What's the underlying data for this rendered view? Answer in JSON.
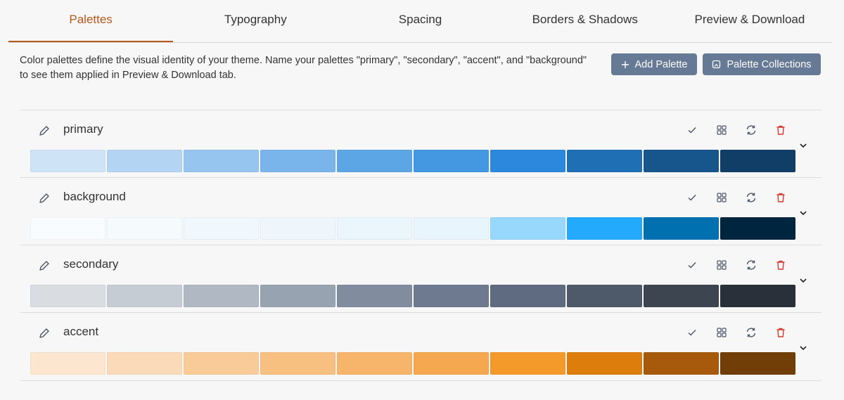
{
  "tabs": [
    {
      "label": "Palettes",
      "active": true
    },
    {
      "label": "Typography",
      "active": false
    },
    {
      "label": "Spacing",
      "active": false
    },
    {
      "label": "Borders & Shadows",
      "active": false
    },
    {
      "label": "Preview & Download",
      "active": false
    }
  ],
  "description": "Color palettes define the visual identity of your theme. Name your palettes \"primary\", \"secondary\", \"accent\", and \"background\" to see them applied in Preview & Download tab.",
  "buttons": {
    "add_palette": "Add Palette",
    "palette_collections": "Palette Collections"
  },
  "colors": {
    "active_tab": "#b5581c",
    "button_bg": "#667995",
    "icon": "#4a5568",
    "delete_icon": "#d63a2f"
  },
  "row_icons": [
    "edit-icon",
    "check-icon",
    "grid-icon",
    "refresh-icon",
    "trash-icon",
    "chevron-down-icon"
  ],
  "palettes": [
    {
      "name": "primary",
      "colors": [
        "#cfe3f7",
        "#b3d5f3",
        "#96c5ef",
        "#79b5ea",
        "#5ca6e6",
        "#4498e2",
        "#2b88dc",
        "#1f6fb5",
        "#17568d",
        "#113e67"
      ]
    },
    {
      "name": "background",
      "colors": [
        "#f9fcfe",
        "#f5fafd",
        "#f1f8fd",
        "#eef6fc",
        "#ebf5fc",
        "#e8f5fd",
        "#99d8fd",
        "#24aafd",
        "#0070b0",
        "#00253f"
      ]
    },
    {
      "name": "secondary",
      "colors": [
        "#d9dde1",
        "#c6ccd3",
        "#b0b8c3",
        "#98a3b1",
        "#818d9e",
        "#6d7a8f",
        "#5e6b80",
        "#4e5969",
        "#3d4551",
        "#2a3039"
      ]
    },
    {
      "name": "accent",
      "colors": [
        "#fde6d0",
        "#fbdab9",
        "#f9cb99",
        "#f8c080",
        "#f6b56a",
        "#f5a84f",
        "#f39a2b",
        "#dc7d0c",
        "#a75a0b",
        "#703e06"
      ]
    }
  ]
}
